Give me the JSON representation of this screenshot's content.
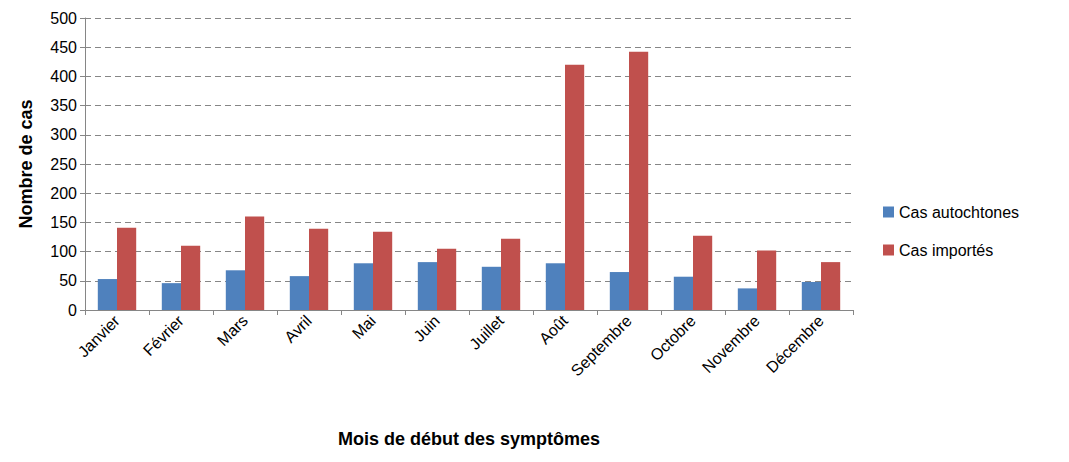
{
  "chart_data": {
    "type": "bar",
    "x_label": "Mois de début des symptômes",
    "y_label": "Nombre de cas",
    "categories": [
      "Janvier",
      "Février",
      "Mars",
      "Avril",
      "Mai",
      "Juin",
      "Juillet",
      "Août",
      "Septembre",
      "Octobre",
      "Novembre",
      "Décembre"
    ],
    "series": [
      {
        "name": "Cas autochtones",
        "color": "#4f81bd",
        "values": [
          53,
          46,
          68,
          58,
          80,
          82,
          74,
          80,
          65,
          57,
          37,
          48
        ]
      },
      {
        "name": "Cas importés",
        "color": "#c0504d",
        "values": [
          141,
          110,
          160,
          139,
          134,
          105,
          122,
          420,
          442,
          127,
          102,
          82
        ]
      }
    ],
    "ylim": [
      0,
      500
    ],
    "yticks": [
      0,
      50,
      100,
      150,
      200,
      250,
      300,
      350,
      400,
      450,
      500
    ],
    "grid": true,
    "legend": "right"
  }
}
